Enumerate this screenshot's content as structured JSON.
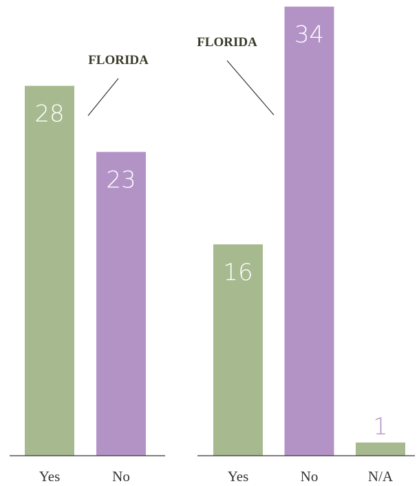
{
  "chart_data": [
    {
      "type": "bar",
      "categories": [
        "Yes",
        "No"
      ],
      "values": [
        28,
        23
      ],
      "colors": [
        "#a7b98f",
        "#b393c6"
      ],
      "ylim": [
        0,
        34.5
      ],
      "annotation": "FLORIDA",
      "inside_label_color": "#ffffff",
      "outside_label_color": "#b393c6"
    },
    {
      "type": "bar",
      "categories": [
        "Yes",
        "No",
        "N/A"
      ],
      "values": [
        16,
        34,
        1
      ],
      "colors": [
        "#a7b98f",
        "#b393c6",
        "#a7b98f"
      ],
      "ylim": [
        0,
        34.5
      ],
      "annotation": "FLORIDA",
      "inside_label_color": "#ffffff",
      "outside_label_color": "#b393c6"
    }
  ]
}
